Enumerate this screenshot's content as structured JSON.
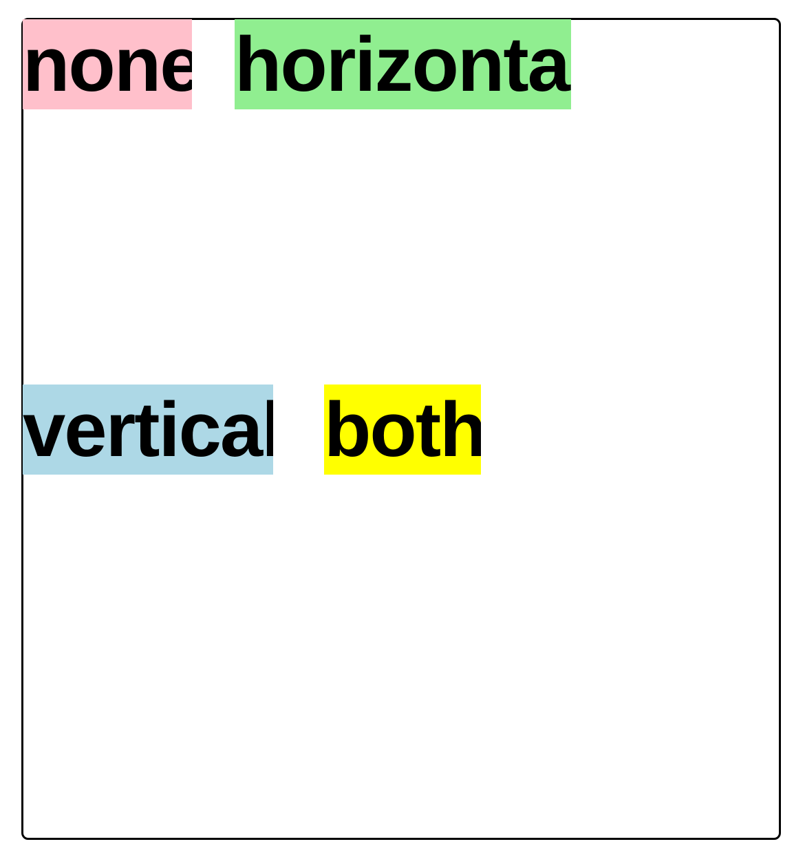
{
  "labels": {
    "none": "none",
    "horizontal": "horizontal",
    "vertical": "vertical",
    "both": "both"
  },
  "colors": {
    "none": "#ffc0cb",
    "horizontal": "#90ee90",
    "vertical": "#add8e6",
    "both": "#ffff00",
    "border": "#000000",
    "text": "#000000"
  }
}
